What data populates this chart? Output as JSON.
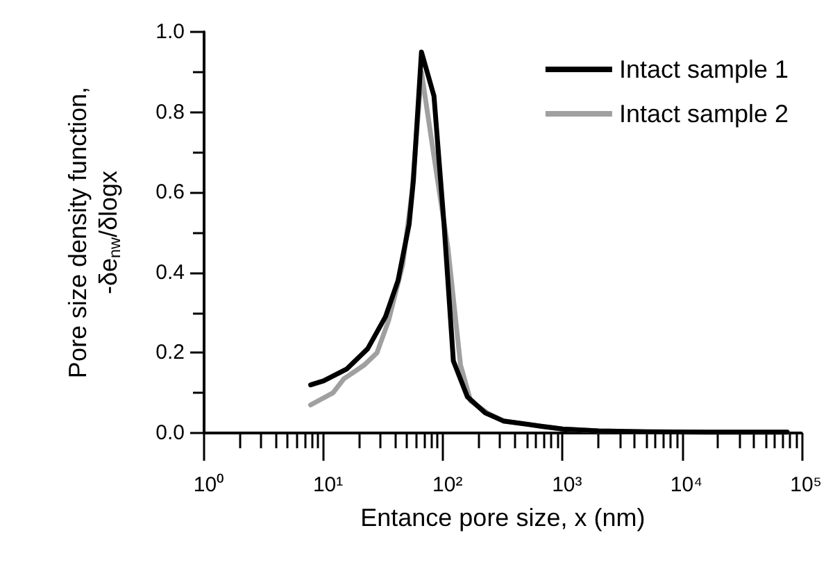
{
  "chart_data": {
    "type": "line",
    "xlabel": "Entance pore size, x (nm)",
    "ylabel": "Pore size density function,\n-δe$_{nw}$/δlogx",
    "log": "x",
    "xlim": [
      1,
      100000
    ],
    "xticks": [
      {
        "value": 1,
        "label": "10⁰"
      },
      {
        "value": 2,
        "label": null
      },
      {
        "value": 3,
        "label": null
      },
      {
        "value": 4,
        "label": null
      },
      {
        "value": 5,
        "label": null
      },
      {
        "value": 6,
        "label": null
      },
      {
        "value": 7,
        "label": null
      },
      {
        "value": 8,
        "label": null
      },
      {
        "value": 9,
        "label": null
      },
      {
        "value": 10,
        "label": "10¹"
      },
      {
        "value": 20,
        "label": null
      },
      {
        "value": 30,
        "label": null
      },
      {
        "value": 40,
        "label": null
      },
      {
        "value": 50,
        "label": null
      },
      {
        "value": 60,
        "label": null
      },
      {
        "value": 70,
        "label": null
      },
      {
        "value": 80,
        "label": null
      },
      {
        "value": 90,
        "label": null
      },
      {
        "value": 100,
        "label": "10²"
      },
      {
        "value": 200,
        "label": null
      },
      {
        "value": 300,
        "label": null
      },
      {
        "value": 400,
        "label": null
      },
      {
        "value": 500,
        "label": null
      },
      {
        "value": 600,
        "label": null
      },
      {
        "value": 700,
        "label": null
      },
      {
        "value": 800,
        "label": null
      },
      {
        "value": 900,
        "label": null
      },
      {
        "value": 1000,
        "label": "10³"
      },
      {
        "value": 2000,
        "label": null
      },
      {
        "value": 3000,
        "label": null
      },
      {
        "value": 4000,
        "label": null
      },
      {
        "value": 5000,
        "label": null
      },
      {
        "value": 6000,
        "label": null
      },
      {
        "value": 7000,
        "label": null
      },
      {
        "value": 8000,
        "label": null
      },
      {
        "value": 9000,
        "label": null
      },
      {
        "value": 10000,
        "label": "10⁴"
      },
      {
        "value": 20000,
        "label": null
      },
      {
        "value": 30000,
        "label": null
      },
      {
        "value": 40000,
        "label": null
      },
      {
        "value": 50000,
        "label": null
      },
      {
        "value": 60000,
        "label": null
      },
      {
        "value": 70000,
        "label": null
      },
      {
        "value": 80000,
        "label": null
      },
      {
        "value": 90000,
        "label": null
      },
      {
        "value": 100000,
        "label": "10⁵"
      }
    ],
    "ylim": [
      0,
      1.0
    ],
    "yticks": [
      {
        "value": 0,
        "label": "0.0"
      },
      {
        "value": 0.1,
        "label": null
      },
      {
        "value": 0.2,
        "label": "0.2"
      },
      {
        "value": 0.3,
        "label": null
      },
      {
        "value": 0.4,
        "label": "0.4"
      },
      {
        "value": 0.5,
        "label": null
      },
      {
        "value": 0.6,
        "label": "0.6"
      },
      {
        "value": 0.7,
        "label": null
      },
      {
        "value": 0.8,
        "label": "0.8"
      },
      {
        "value": 0.9,
        "label": null
      },
      {
        "value": 1.0,
        "label": "1.0"
      }
    ],
    "grid": false,
    "legend": "top right",
    "marker": "none",
    "line_style": "solid",
    "series": [
      {
        "name": "Intact sample 1",
        "color": "#000000",
        "x": [
          7.8,
          10,
          15.7,
          23.4,
          33,
          42,
          52,
          56.5,
          66,
          84,
          102,
          122,
          160,
          226,
          320,
          660,
          1000,
          2000,
          5000,
          20000,
          76000
        ],
        "values": [
          0.12,
          0.13,
          0.16,
          0.21,
          0.29,
          0.38,
          0.52,
          0.63,
          0.95,
          0.84,
          0.52,
          0.18,
          0.09,
          0.05,
          0.03,
          0.017,
          0.01,
          0.005,
          0.003,
          0.002,
          0.002
        ]
      },
      {
        "name": "Intact sample 2",
        "color": "#a0a0a0",
        "x": [
          7.8,
          12,
          14.8,
          22,
          28,
          35,
          46,
          55,
          66,
          84,
          110,
          140,
          170,
          235,
          320,
          660,
          1000,
          2000,
          5000,
          20000,
          76000
        ],
        "values": [
          0.07,
          0.1,
          0.135,
          0.17,
          0.2,
          0.28,
          0.42,
          0.6,
          0.9,
          0.69,
          0.46,
          0.17,
          0.08,
          0.05,
          0.03,
          0.017,
          0.01,
          0.005,
          0.003,
          0.002,
          0.002
        ]
      }
    ]
  }
}
